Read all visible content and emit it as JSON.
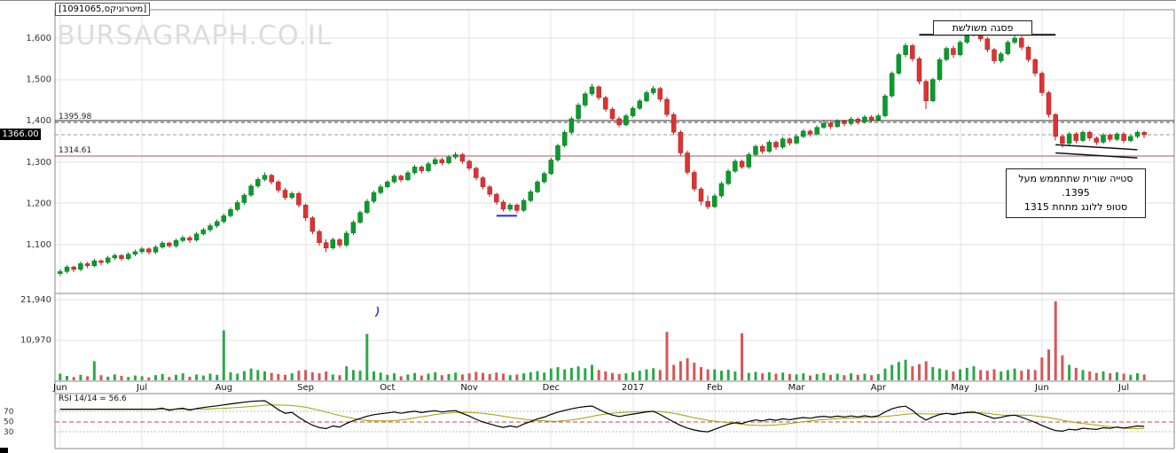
{
  "window": {
    "title_box": "[1091065,מיטרוניקס]"
  },
  "watermark": "BURSAGRAPH.CO.IL",
  "last_price": {
    "label": "1366.00",
    "value": 1366.0
  },
  "price_lines": [
    {
      "value": 1400.0,
      "label": "",
      "style": "solid",
      "color": "#333333"
    },
    {
      "value": 1395.98,
      "label": "1395.98",
      "style": "dashed",
      "color": "#444444"
    },
    {
      "value": 1366.0,
      "label": "",
      "style": "dashed",
      "color": "#999999"
    },
    {
      "value": 1314.61,
      "label": "1314.61",
      "style": "solid",
      "color": "#aa5a5a"
    }
  ],
  "annotations": {
    "triple_top_label": "פסגה משולשת",
    "note_lines": [
      "סטייה שורית שתתממש מעל",
      "1395.",
      "סטופ ללונג מתחת 1315"
    ]
  },
  "rsi_caption": "RSI 14/14 = 56.6",
  "chart_data": {
    "type": "candlestick",
    "title": "[1091065,מיטרוניקס]",
    "panels": [
      "price",
      "volume",
      "rsi"
    ],
    "x_labels": [
      "Jun",
      "Jul",
      "Aug",
      "Sep",
      "Oct",
      "Nov",
      "Dec",
      "2017",
      "Feb",
      "Mar",
      "Apr",
      "May",
      "Jun",
      "Jul"
    ],
    "x_label_indices": [
      0,
      12,
      24,
      36,
      48,
      60,
      72,
      84,
      96,
      108,
      120,
      132,
      144,
      156
    ],
    "price_axis": {
      "tick_values": [
        1600,
        1500,
        1400,
        1300,
        1200,
        1100
      ],
      "tick_labels": [
        "1,600",
        "1,500",
        "1,400",
        "1,300",
        "1,200",
        "1,100"
      ],
      "ylim": [
        985,
        1668
      ]
    },
    "volume_axis": {
      "tick_values": [
        21940,
        10970
      ],
      "tick_labels": [
        "21,940",
        "10,970"
      ]
    },
    "rsi": {
      "period": 14,
      "smooth_period": 14,
      "last_value": 56.6,
      "levels": [
        70,
        50,
        30
      ],
      "level_labels": [
        "70",
        "50",
        "30"
      ]
    },
    "colors": {
      "up": "#0a9b2c",
      "up_stroke": "#077a20",
      "down": "#dd3333",
      "down_stroke": "#b32222",
      "vol_up": "#2aaa45",
      "vol_down": "#d95555",
      "rsi_line": "#000000",
      "rsi_signal": "#a3a000",
      "rsi_mid_line": "#cc4444"
    },
    "overlays": {
      "resistance": {
        "i1": 126,
        "p1": 1608,
        "i2": 146,
        "p2": 1608,
        "color": "#111111",
        "width": 2
      },
      "flag_lines": [
        {
          "i1": 146,
          "p1": 1342,
          "i2": 158,
          "p2": 1330,
          "color": "#111111",
          "width": 1.5
        },
        {
          "i1": 146,
          "p1": 1322,
          "i2": 158,
          "p2": 1310,
          "color": "#111111",
          "width": 1.5
        }
      ],
      "blue_underline": {
        "i1": 64,
        "p1": 1170,
        "i2": 67,
        "p2": 1170,
        "color": "#2a2ad0",
        "width": 2
      },
      "blue_volume_mark_index": 46.5
    },
    "candles": [
      [
        1030,
        1041,
        1024,
        1035
      ],
      [
        1035,
        1051,
        1030,
        1046
      ],
      [
        1046,
        1050,
        1034,
        1040
      ],
      [
        1040,
        1059,
        1036,
        1054
      ],
      [
        1054,
        1058,
        1043,
        1049
      ],
      [
        1049,
        1066,
        1045,
        1061
      ],
      [
        1061,
        1065,
        1051,
        1057
      ],
      [
        1057,
        1073,
        1053,
        1068
      ],
      [
        1068,
        1079,
        1063,
        1074
      ],
      [
        1074,
        1078,
        1060,
        1066
      ],
      [
        1066,
        1082,
        1062,
        1077
      ],
      [
        1077,
        1088,
        1072,
        1083
      ],
      [
        1083,
        1095,
        1078,
        1090
      ],
      [
        1090,
        1094,
        1076,
        1082
      ],
      [
        1082,
        1099,
        1078,
        1094
      ],
      [
        1094,
        1109,
        1090,
        1104
      ],
      [
        1104,
        1108,
        1092,
        1097
      ],
      [
        1097,
        1115,
        1093,
        1110
      ],
      [
        1110,
        1122,
        1105,
        1117
      ],
      [
        1117,
        1121,
        1104,
        1111
      ],
      [
        1111,
        1131,
        1107,
        1126
      ],
      [
        1126,
        1141,
        1122,
        1136
      ],
      [
        1136,
        1151,
        1131,
        1146
      ],
      [
        1146,
        1161,
        1141,
        1156
      ],
      [
        1156,
        1175,
        1152,
        1170
      ],
      [
        1170,
        1190,
        1165,
        1185
      ],
      [
        1185,
        1207,
        1181,
        1202
      ],
      [
        1202,
        1225,
        1197,
        1220
      ],
      [
        1220,
        1247,
        1216,
        1242
      ],
      [
        1242,
        1263,
        1237,
        1258
      ],
      [
        1258,
        1275,
        1253,
        1268
      ],
      [
        1268,
        1272,
        1246,
        1252
      ],
      [
        1252,
        1257,
        1226,
        1232
      ],
      [
        1232,
        1237,
        1208,
        1214
      ],
      [
        1214,
        1229,
        1209,
        1224
      ],
      [
        1224,
        1229,
        1190,
        1196
      ],
      [
        1196,
        1200,
        1158,
        1165
      ],
      [
        1165,
        1169,
        1126,
        1132
      ],
      [
        1132,
        1137,
        1098,
        1105
      ],
      [
        1105,
        1113,
        1082,
        1092
      ],
      [
        1092,
        1117,
        1088,
        1112
      ],
      [
        1112,
        1116,
        1093,
        1099
      ],
      [
        1099,
        1133,
        1095,
        1128
      ],
      [
        1128,
        1159,
        1124,
        1154
      ],
      [
        1154,
        1183,
        1150,
        1178
      ],
      [
        1178,
        1210,
        1174,
        1205
      ],
      [
        1205,
        1231,
        1200,
        1226
      ],
      [
        1226,
        1246,
        1221,
        1240
      ],
      [
        1240,
        1257,
        1236,
        1252
      ],
      [
        1252,
        1271,
        1248,
        1266
      ],
      [
        1266,
        1270,
        1251,
        1257
      ],
      [
        1257,
        1279,
        1253,
        1274
      ],
      [
        1274,
        1293,
        1270,
        1288
      ],
      [
        1288,
        1292,
        1273,
        1279
      ],
      [
        1279,
        1301,
        1275,
        1296
      ],
      [
        1296,
        1311,
        1292,
        1306
      ],
      [
        1306,
        1310,
        1292,
        1298
      ],
      [
        1298,
        1317,
        1294,
        1312
      ],
      [
        1312,
        1324,
        1307,
        1318
      ],
      [
        1318,
        1322,
        1296,
        1302
      ],
      [
        1302,
        1306,
        1279,
        1285
      ],
      [
        1285,
        1289,
        1256,
        1262
      ],
      [
        1262,
        1266,
        1234,
        1240
      ],
      [
        1240,
        1245,
        1216,
        1222
      ],
      [
        1222,
        1226,
        1197,
        1203
      ],
      [
        1203,
        1208,
        1180,
        1186
      ],
      [
        1186,
        1201,
        1181,
        1196
      ],
      [
        1196,
        1200,
        1176,
        1183
      ],
      [
        1183,
        1212,
        1179,
        1207
      ],
      [
        1207,
        1233,
        1203,
        1228
      ],
      [
        1228,
        1257,
        1224,
        1252
      ],
      [
        1252,
        1277,
        1248,
        1272
      ],
      [
        1272,
        1310,
        1268,
        1305
      ],
      [
        1305,
        1345,
        1301,
        1340
      ],
      [
        1340,
        1377,
        1336,
        1372
      ],
      [
        1372,
        1410,
        1368,
        1405
      ],
      [
        1405,
        1443,
        1401,
        1438
      ],
      [
        1438,
        1470,
        1433,
        1465
      ],
      [
        1465,
        1490,
        1460,
        1482
      ],
      [
        1482,
        1486,
        1450,
        1456
      ],
      [
        1456,
        1461,
        1422,
        1428
      ],
      [
        1428,
        1433,
        1399,
        1405
      ],
      [
        1405,
        1410,
        1384,
        1390
      ],
      [
        1390,
        1417,
        1386,
        1412
      ],
      [
        1412,
        1435,
        1408,
        1430
      ],
      [
        1430,
        1453,
        1426,
        1448
      ],
      [
        1448,
        1473,
        1444,
        1468
      ],
      [
        1468,
        1484,
        1463,
        1478
      ],
      [
        1478,
        1482,
        1446,
        1452
      ],
      [
        1452,
        1457,
        1409,
        1415
      ],
      [
        1415,
        1420,
        1366,
        1372
      ],
      [
        1372,
        1377,
        1316,
        1322
      ],
      [
        1322,
        1327,
        1269,
        1275
      ],
      [
        1275,
        1280,
        1229,
        1235
      ],
      [
        1235,
        1240,
        1196,
        1205
      ],
      [
        1205,
        1219,
        1186,
        1192
      ],
      [
        1192,
        1223,
        1188,
        1218
      ],
      [
        1218,
        1253,
        1214,
        1248
      ],
      [
        1248,
        1283,
        1244,
        1278
      ],
      [
        1278,
        1307,
        1274,
        1302
      ],
      [
        1302,
        1306,
        1283,
        1288
      ],
      [
        1288,
        1323,
        1284,
        1318
      ],
      [
        1318,
        1343,
        1314,
        1338
      ],
      [
        1338,
        1342,
        1320,
        1326
      ],
      [
        1326,
        1353,
        1322,
        1348
      ],
      [
        1348,
        1352,
        1330,
        1336
      ],
      [
        1336,
        1361,
        1332,
        1356
      ],
      [
        1356,
        1360,
        1340,
        1346
      ],
      [
        1346,
        1367,
        1342,
        1362
      ],
      [
        1362,
        1380,
        1358,
        1375
      ],
      [
        1375,
        1379,
        1362,
        1368
      ],
      [
        1368,
        1389,
        1364,
        1384
      ],
      [
        1384,
        1399,
        1380,
        1394
      ],
      [
        1394,
        1398,
        1380,
        1386
      ],
      [
        1386,
        1404,
        1382,
        1399
      ],
      [
        1399,
        1403,
        1387,
        1393
      ],
      [
        1393,
        1409,
        1389,
        1404
      ],
      [
        1404,
        1408,
        1391,
        1397
      ],
      [
        1397,
        1414,
        1393,
        1409
      ],
      [
        1409,
        1413,
        1396,
        1402
      ],
      [
        1402,
        1417,
        1398,
        1412
      ],
      [
        1412,
        1465,
        1408,
        1460
      ],
      [
        1460,
        1520,
        1456,
        1515
      ],
      [
        1515,
        1565,
        1511,
        1560
      ],
      [
        1560,
        1588,
        1554,
        1582
      ],
      [
        1582,
        1586,
        1543,
        1550
      ],
      [
        1550,
        1555,
        1488,
        1495
      ],
      [
        1495,
        1500,
        1428,
        1448
      ],
      [
        1448,
        1505,
        1444,
        1500
      ],
      [
        1500,
        1553,
        1496,
        1548
      ],
      [
        1548,
        1580,
        1544,
        1575
      ],
      [
        1575,
        1582,
        1552,
        1560
      ],
      [
        1560,
        1595,
        1556,
        1590
      ],
      [
        1590,
        1614,
        1586,
        1610
      ],
      [
        1610,
        1622,
        1604,
        1616
      ],
      [
        1616,
        1620,
        1592,
        1598
      ],
      [
        1598,
        1602,
        1566,
        1572
      ],
      [
        1572,
        1576,
        1538,
        1545
      ],
      [
        1545,
        1567,
        1540,
        1562
      ],
      [
        1562,
        1595,
        1558,
        1590
      ],
      [
        1590,
        1606,
        1585,
        1600
      ],
      [
        1600,
        1604,
        1571,
        1578
      ],
      [
        1578,
        1582,
        1542,
        1548
      ],
      [
        1548,
        1552,
        1508,
        1515
      ],
      [
        1515,
        1519,
        1460,
        1468
      ],
      [
        1468,
        1472,
        1408,
        1415
      ],
      [
        1415,
        1419,
        1352,
        1362
      ],
      [
        1362,
        1366,
        1335,
        1345
      ],
      [
        1345,
        1373,
        1341,
        1368
      ],
      [
        1368,
        1372,
        1346,
        1352
      ],
      [
        1352,
        1377,
        1348,
        1372
      ],
      [
        1372,
        1376,
        1352,
        1358
      ],
      [
        1358,
        1362,
        1341,
        1348
      ],
      [
        1348,
        1370,
        1344,
        1365
      ],
      [
        1365,
        1369,
        1349,
        1355
      ],
      [
        1355,
        1373,
        1351,
        1368
      ],
      [
        1368,
        1372,
        1346,
        1352
      ],
      [
        1352,
        1367,
        1348,
        1362
      ],
      [
        1362,
        1377,
        1358,
        1372
      ],
      [
        1372,
        1376,
        1358,
        1366
      ]
    ],
    "volume": [
      1800,
      1200,
      900,
      1500,
      1100,
      5200,
      1400,
      1000,
      1600,
      1200,
      900,
      1300,
      1100,
      800,
      1400,
      1700,
      900,
      1500,
      1900,
      1000,
      1600,
      1300,
      1800,
      1500,
      13600,
      2200,
      1800,
      2500,
      3200,
      2800,
      2400,
      2000,
      1700,
      1500,
      1900,
      2600,
      2800,
      2200,
      1900,
      2400,
      1600,
      1400,
      3800,
      2800,
      2600,
      12600,
      2400,
      2100,
      1500,
      1900,
      1100,
      1600,
      2000,
      1300,
      1800,
      2200,
      1400,
      1700,
      2100,
      1600,
      1900,
      2300,
      2000,
      1700,
      2100,
      1800,
      1400,
      1600,
      1900,
      2200,
      2500,
      2100,
      3200,
      3600,
      3000,
      3400,
      3800,
      3300,
      4200,
      2800,
      2400,
      2000,
      1700,
      1900,
      2200,
      2600,
      3000,
      3300,
      2800,
      13200,
      4200,
      5200,
      6000,
      4800,
      3600,
      3000,
      3000,
      2600,
      2900,
      2400,
      12800,
      2000,
      2300,
      1900,
      2200,
      1800,
      2100,
      1700,
      1600,
      1900,
      1300,
      1700,
      2000,
      1500,
      1800,
      1400,
      1900,
      1500,
      1800,
      1400,
      1700,
      3200,
      4200,
      5000,
      5600,
      3800,
      4400,
      5200,
      3600,
      3200,
      2800,
      2400,
      3000,
      3400,
      3800,
      2800,
      2600,
      3000,
      2400,
      2800,
      3200,
      2600,
      3000,
      2800,
      6200,
      8400,
      21500,
      6800,
      4200,
      3400,
      2800,
      2400,
      2000,
      2400,
      1900,
      2200,
      1800,
      1500,
      1900,
      1600
    ]
  }
}
